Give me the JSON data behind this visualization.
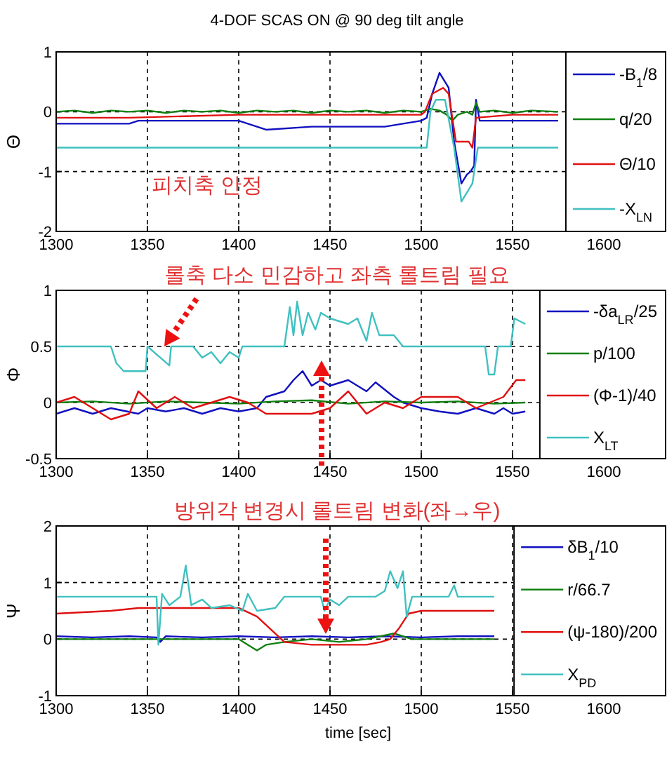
{
  "chart_data": [
    {
      "type": "line",
      "title": "4-DOF SCAS ON @ 90 deg tilt angle",
      "ylabel": "Θ",
      "xlim": [
        1300,
        1630
      ],
      "ylim": [
        -2,
        1
      ],
      "xticks": [
        1300,
        1350,
        1400,
        1450,
        1500,
        1550,
        1600
      ],
      "yticks": [
        -2,
        -1,
        0,
        1
      ],
      "grid": true,
      "legend": "right",
      "annotations": [
        "피치축 안정"
      ],
      "series": [
        {
          "name": "-B$_{1}$/8",
          "color": "#1010c0",
          "x": [
            1300,
            1340,
            1345,
            1400,
            1410,
            1415,
            1440,
            1480,
            1490,
            1500,
            1503,
            1506,
            1510,
            1513,
            1515,
            1518,
            1522,
            1525,
            1527,
            1529,
            1530,
            1532,
            1550,
            1575
          ],
          "values": [
            -0.2,
            -0.2,
            -0.15,
            -0.15,
            -0.25,
            -0.3,
            -0.25,
            -0.25,
            -0.2,
            -0.15,
            -0.1,
            0.3,
            0.65,
            0.5,
            0.4,
            -0.5,
            -1.2,
            -1.05,
            -1.0,
            -0.9,
            0.2,
            -0.15,
            -0.15,
            -0.15
          ]
        },
        {
          "name": "q/20",
          "color": "#108010",
          "x": [
            1300,
            1310,
            1320,
            1330,
            1340,
            1350,
            1360,
            1370,
            1380,
            1390,
            1400,
            1410,
            1420,
            1430,
            1440,
            1450,
            1460,
            1470,
            1480,
            1490,
            1500,
            1505,
            1510,
            1514,
            1517,
            1520,
            1525,
            1528,
            1530,
            1532,
            1540,
            1550,
            1560,
            1575
          ],
          "values": [
            0,
            0.02,
            -0.02,
            0.02,
            0,
            0.02,
            -0.02,
            0.02,
            0,
            0.02,
            -0.02,
            0.02,
            0,
            0.02,
            -0.02,
            0.02,
            0,
            0.02,
            -0.02,
            0.02,
            0,
            0.05,
            0.02,
            -0.05,
            -0.15,
            -0.05,
            0,
            -0.05,
            0.15,
            0,
            0.02,
            -0.02,
            0.02,
            0
          ]
        },
        {
          "name": "Θ/10",
          "color": "#e01010",
          "x": [
            1300,
            1340,
            1400,
            1500,
            1502,
            1506,
            1512,
            1515,
            1517,
            1519,
            1526,
            1528,
            1530,
            1550,
            1575
          ],
          "values": [
            -0.1,
            -0.1,
            -0.05,
            -0.05,
            0,
            0.3,
            0.4,
            0.3,
            -0.1,
            -0.5,
            -0.5,
            -0.6,
            -0.1,
            -0.05,
            -0.05
          ]
        },
        {
          "name": "-X$_{LN}$",
          "color": "#40c0c0",
          "x": [
            1300,
            1503,
            1505,
            1508,
            1513,
            1518,
            1522,
            1526,
            1528,
            1531,
            1575
          ],
          "values": [
            -0.6,
            -0.6,
            0,
            0.2,
            0.2,
            -0.6,
            -1.5,
            -1.3,
            -1.2,
            -0.6,
            -0.6
          ]
        }
      ]
    },
    {
      "type": "line",
      "ylabel": "Φ",
      "xlim": [
        1300,
        1630
      ],
      "ylim": [
        -0.5,
        1
      ],
      "xticks": [
        1300,
        1350,
        1400,
        1450,
        1500,
        1550,
        1600
      ],
      "yticks": [
        -0.5,
        0,
        0.5,
        1
      ],
      "grid": true,
      "legend": "right",
      "annotations": [
        "롤축 다소 민감하고 좌측 롤트림 필요"
      ],
      "series": [
        {
          "name": "-δa$_{LR}$/25",
          "color": "#1010c0",
          "x": [
            1300,
            1310,
            1320,
            1330,
            1345,
            1350,
            1360,
            1370,
            1380,
            1390,
            1400,
            1410,
            1415,
            1425,
            1430,
            1435,
            1440,
            1445,
            1450,
            1460,
            1470,
            1475,
            1485,
            1490,
            1500,
            1510,
            1520,
            1530,
            1540,
            1545,
            1550,
            1557
          ],
          "values": [
            -0.1,
            -0.05,
            -0.1,
            -0.05,
            -0.1,
            -0.05,
            -0.08,
            -0.05,
            -0.1,
            -0.05,
            -0.08,
            -0.05,
            0.05,
            0.1,
            0.2,
            0.28,
            0.15,
            0.2,
            0.15,
            0.2,
            0.1,
            0.18,
            0.05,
            0,
            -0.05,
            -0.08,
            -0.1,
            -0.05,
            -0.1,
            -0.05,
            -0.1,
            -0.08
          ]
        },
        {
          "name": "p/100",
          "color": "#108010",
          "x": [
            1300,
            1320,
            1340,
            1360,
            1380,
            1400,
            1420,
            1440,
            1460,
            1480,
            1500,
            1520,
            1540,
            1557
          ],
          "values": [
            0,
            0.01,
            -0.01,
            0.01,
            0,
            -0.01,
            0.01,
            0.02,
            -0.01,
            0.01,
            0,
            0.01,
            -0.01,
            0
          ]
        },
        {
          "name": "(Φ-1)/40",
          "color": "#e01010",
          "x": [
            1300,
            1310,
            1320,
            1330,
            1340,
            1345,
            1355,
            1365,
            1375,
            1385,
            1395,
            1405,
            1415,
            1440,
            1450,
            1460,
            1470,
            1480,
            1490,
            1500,
            1520,
            1530,
            1545,
            1552,
            1557
          ],
          "values": [
            0,
            0.05,
            -0.05,
            -0.15,
            -0.1,
            0.1,
            -0.05,
            0.05,
            -0.05,
            0,
            0.05,
            0,
            -0.1,
            -0.1,
            -0.05,
            0.1,
            -0.1,
            0,
            -0.05,
            0.05,
            0.05,
            -0.05,
            0.05,
            0.2,
            0.2
          ]
        },
        {
          "name": "X$_{LT}$",
          "color": "#40c0c0",
          "x": [
            1300,
            1330,
            1333,
            1337,
            1349,
            1350,
            1362,
            1363,
            1375,
            1380,
            1385,
            1390,
            1395,
            1400,
            1402,
            1425,
            1428,
            1430,
            1432,
            1435,
            1438,
            1442,
            1445,
            1450,
            1460,
            1465,
            1470,
            1473,
            1477,
            1485,
            1490,
            1535,
            1537,
            1540,
            1542,
            1549,
            1551,
            1557
          ],
          "values": [
            0.5,
            0.5,
            0.35,
            0.28,
            0.28,
            0.5,
            0.33,
            0.5,
            0.5,
            0.4,
            0.45,
            0.35,
            0.45,
            0.4,
            0.5,
            0.5,
            0.85,
            0.6,
            0.9,
            0.6,
            0.8,
            0.65,
            0.8,
            0.75,
            0.7,
            0.75,
            0.55,
            0.8,
            0.6,
            0.6,
            0.5,
            0.5,
            0.25,
            0.25,
            0.5,
            0.5,
            0.75,
            0.7
          ]
        }
      ]
    },
    {
      "type": "line",
      "ylabel": "Ψ",
      "xlabel": "time [sec]",
      "xlim": [
        1300,
        1630
      ],
      "ylim": [
        -1,
        2
      ],
      "xticks": [
        1300,
        1350,
        1400,
        1450,
        1500,
        1550,
        1600
      ],
      "yticks": [
        -1,
        0,
        1,
        2
      ],
      "grid": true,
      "legend": "right",
      "annotations": [
        "방위각 변경시 롤트림 변화(좌→우)"
      ],
      "series": [
        {
          "name": "δB$_{1}$/10",
          "color": "#1010c0",
          "x": [
            1300,
            1320,
            1340,
            1355,
            1357,
            1360,
            1380,
            1400,
            1420,
            1440,
            1460,
            1480,
            1500,
            1520,
            1540
          ],
          "values": [
            0.05,
            0.03,
            0.05,
            0.03,
            -0.05,
            0.05,
            0.03,
            0.05,
            0.03,
            0.05,
            0.03,
            0.05,
            0.03,
            0.05,
            0.05
          ]
        },
        {
          "name": "r/66.7",
          "color": "#108010",
          "x": [
            1300,
            1400,
            1405,
            1410,
            1415,
            1425,
            1440,
            1455,
            1470,
            1485,
            1495,
            1540
          ],
          "values": [
            0,
            0,
            -0.1,
            -0.2,
            -0.1,
            -0.05,
            0,
            -0.05,
            0,
            0.1,
            0,
            0
          ]
        },
        {
          "name": "(ψ-180)/200",
          "color": "#e01010",
          "x": [
            1300,
            1330,
            1345,
            1400,
            1410,
            1420,
            1425,
            1440,
            1470,
            1478,
            1483,
            1488,
            1493,
            1500,
            1540
          ],
          "values": [
            0.45,
            0.5,
            0.55,
            0.55,
            0.4,
            0.1,
            -0.05,
            -0.1,
            -0.1,
            -0.05,
            0,
            0.2,
            0.45,
            0.5,
            0.5
          ]
        },
        {
          "name": "X$_{PD}$",
          "color": "#40c0c0",
          "x": [
            1300,
            1355,
            1356,
            1358,
            1362,
            1368,
            1371,
            1374,
            1380,
            1385,
            1395,
            1402,
            1405,
            1410,
            1420,
            1425,
            1445,
            1447,
            1450,
            1455,
            1460,
            1475,
            1480,
            1483,
            1487,
            1490,
            1492,
            1495,
            1515,
            1518,
            1520,
            1540
          ],
          "values": [
            0.75,
            0.75,
            -0.1,
            0.8,
            0.6,
            0.75,
            1.3,
            0.6,
            0.7,
            0.55,
            0.6,
            0.5,
            0.8,
            0.5,
            0.55,
            0.75,
            0.75,
            0.5,
            0.7,
            0.6,
            0.75,
            0.75,
            0.85,
            1.2,
            0.9,
            1.2,
            0.4,
            0.75,
            0.75,
            0.95,
            0.75,
            0.75
          ]
        }
      ]
    }
  ]
}
